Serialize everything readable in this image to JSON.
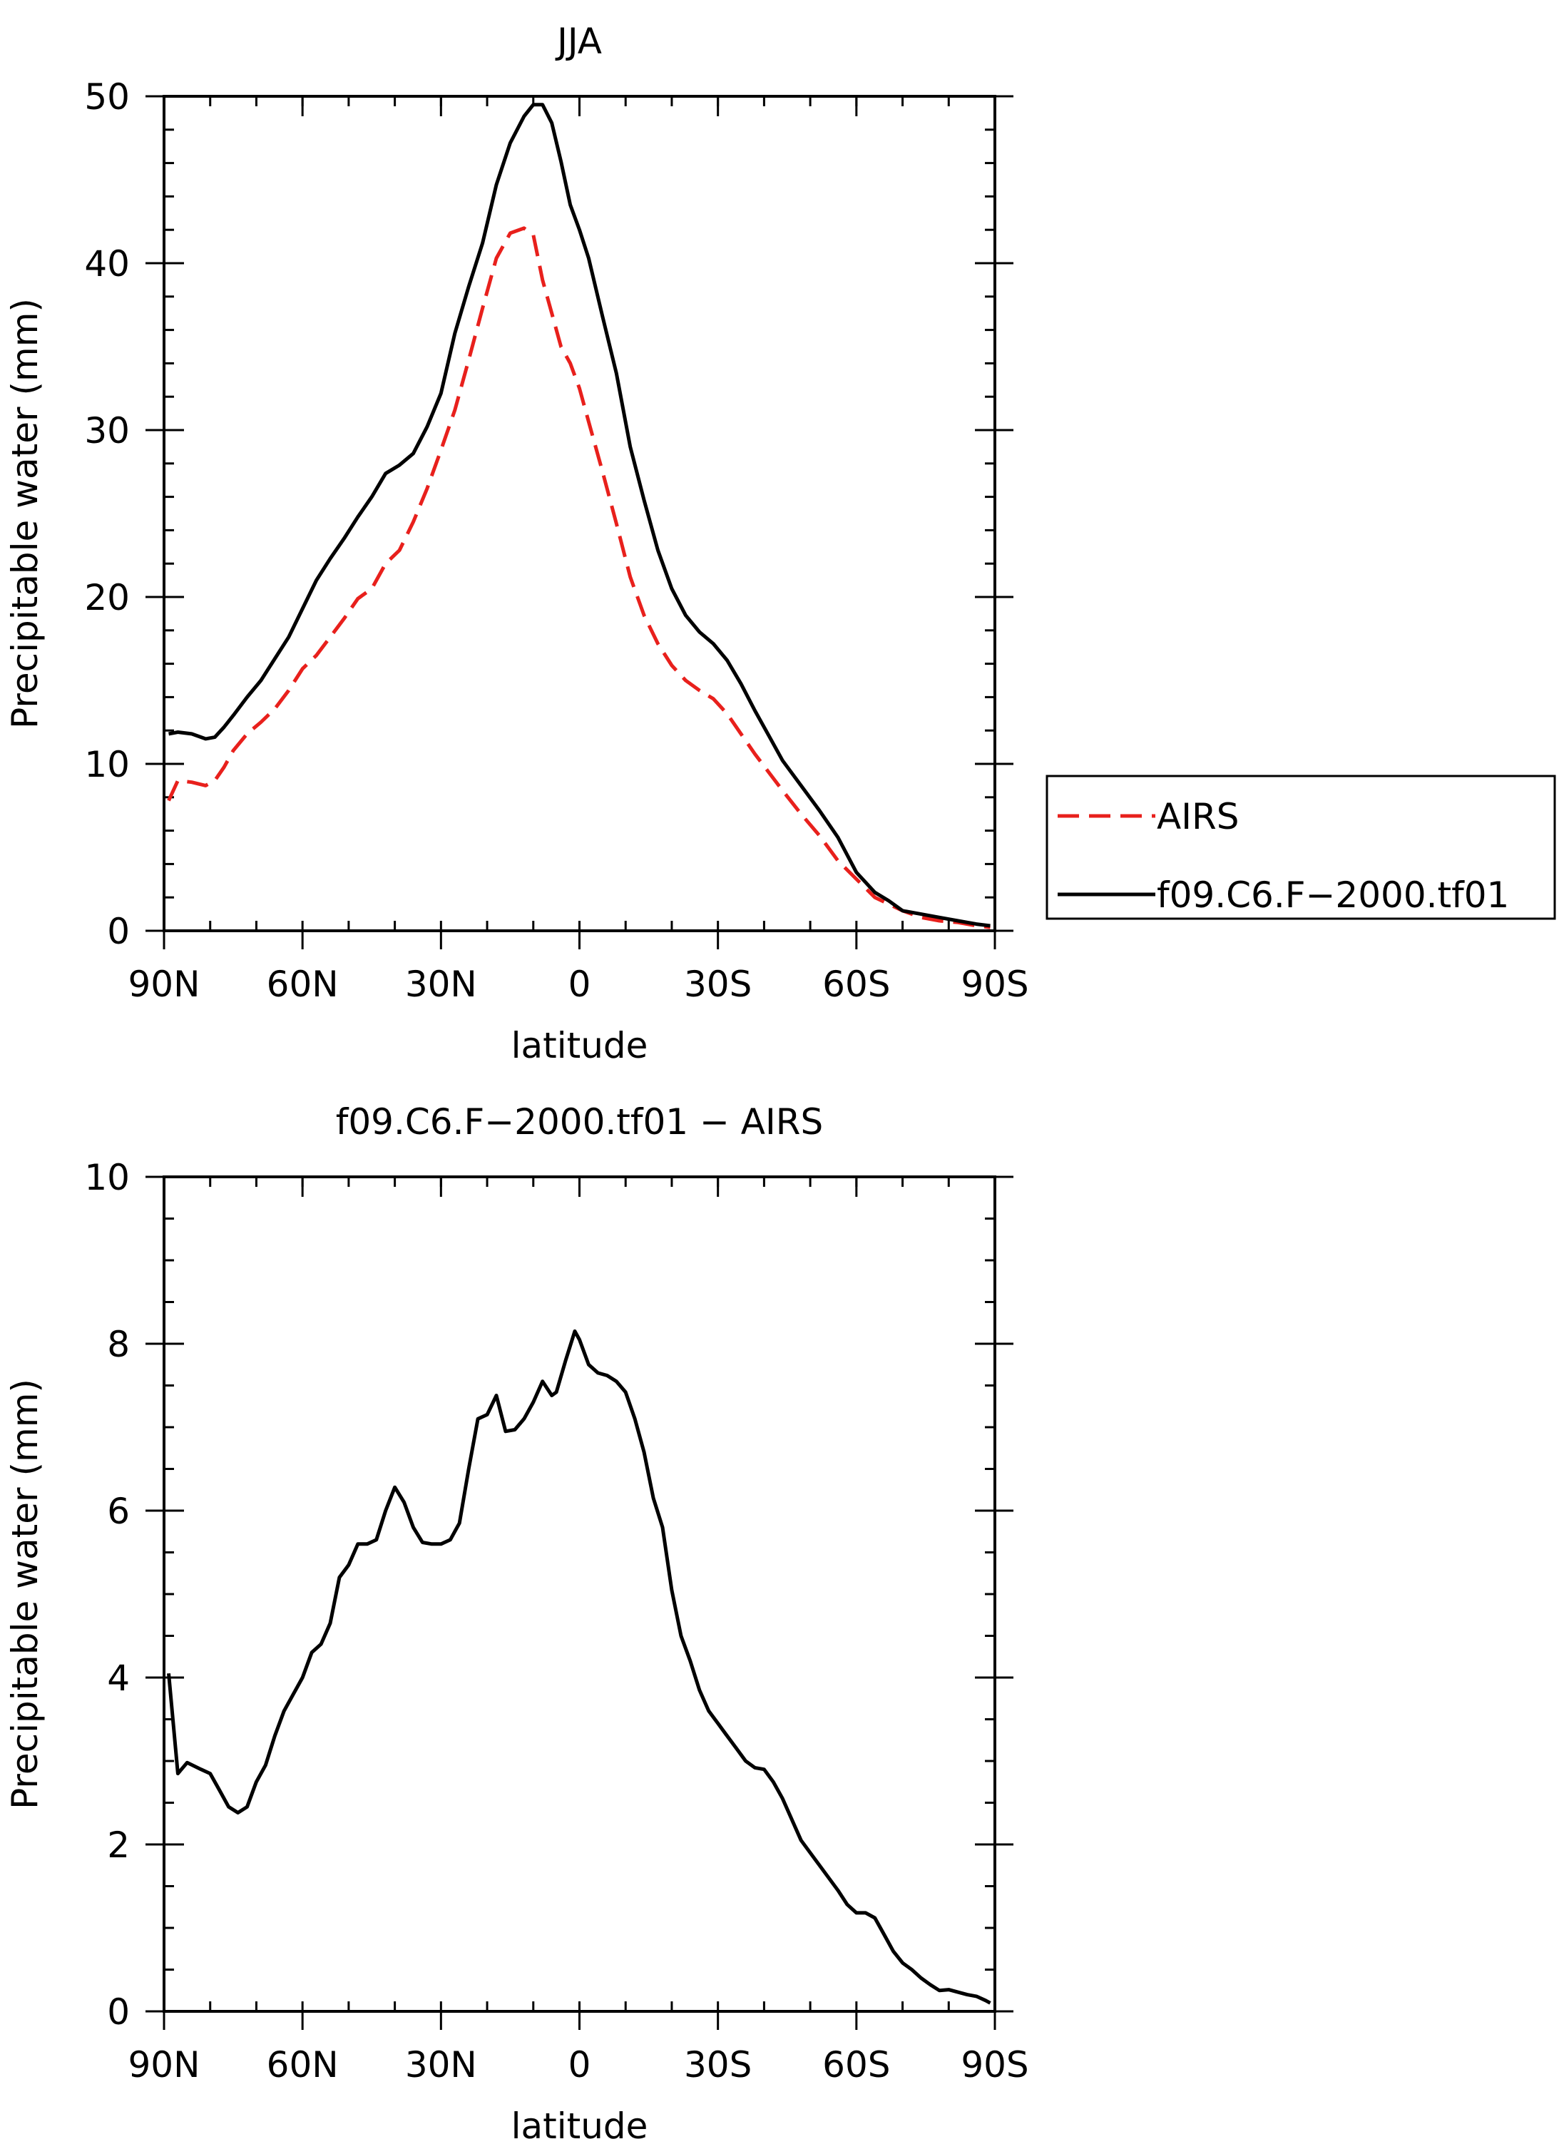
{
  "chart_data": [
    {
      "type": "line",
      "title": "JJA",
      "xlabel": "latitude",
      "ylabel": "Precipitable water (mm)",
      "xlim": [
        90,
        -90
      ],
      "ylim": [
        0,
        50
      ],
      "x_ticks": [
        {
          "value": 90,
          "label": "90N"
        },
        {
          "value": 60,
          "label": "60N"
        },
        {
          "value": 30,
          "label": "30N"
        },
        {
          "value": 0,
          "label": "0"
        },
        {
          "value": -30,
          "label": "30S"
        },
        {
          "value": -60,
          "label": "60S"
        },
        {
          "value": -90,
          "label": "90S"
        }
      ],
      "y_ticks": [
        0,
        10,
        20,
        30,
        40,
        50
      ],
      "legend_position": "outside-right",
      "series": [
        {
          "name": "AIRS",
          "color": "#e8201c",
          "dash": "dashed",
          "x": [
            89,
            87,
            84,
            81,
            79,
            77,
            75,
            72,
            69,
            66,
            63,
            60,
            57,
            54,
            51,
            48,
            45,
            42,
            39,
            36,
            33,
            30,
            27,
            24,
            21,
            18,
            15,
            12,
            10,
            8,
            6,
            4,
            2,
            0,
            -2,
            -5,
            -8,
            -11,
            -14,
            -17,
            -20,
            -23,
            -26,
            -29,
            -32,
            -35,
            -38,
            -41,
            -44,
            -48,
            -52,
            -56,
            -60,
            -64,
            -67,
            -70,
            -74,
            -78,
            -82,
            -86,
            -89
          ],
          "y": [
            7.8,
            9.0,
            8.9,
            8.7,
            9.0,
            9.8,
            10.8,
            11.8,
            12.5,
            13.3,
            14.4,
            15.7,
            16.5,
            17.6,
            18.7,
            19.9,
            20.5,
            22.0,
            22.8,
            24.5,
            26.5,
            28.8,
            31.2,
            34.2,
            37.3,
            40.3,
            41.8,
            42.1,
            41.7,
            39.0,
            37.0,
            35.0,
            34.0,
            32.5,
            30.5,
            27.5,
            24.4,
            21.2,
            18.9,
            17.2,
            15.9,
            15.0,
            14.4,
            13.9,
            13.0,
            11.8,
            10.6,
            9.5,
            8.4,
            7.0,
            5.7,
            4.2,
            3.1,
            2.0,
            1.6,
            1.2,
            0.8,
            0.6,
            0.5,
            0.3,
            0.2
          ]
        },
        {
          "name": "f09.C6.F−2000.tf01",
          "color": "#000000",
          "dash": "solid",
          "x": [
            89,
            87,
            84,
            81,
            79,
            77,
            75,
            72,
            69,
            66,
            63,
            60,
            57,
            54,
            51,
            48,
            45,
            42,
            39,
            36,
            33,
            30,
            27,
            24,
            21,
            18,
            15,
            12,
            10,
            8,
            6,
            4,
            2,
            0,
            -2,
            -5,
            -8,
            -11,
            -14,
            -17,
            -20,
            -23,
            -26,
            -29,
            -32,
            -35,
            -38,
            -41,
            -44,
            -48,
            -52,
            -56,
            -60,
            -64,
            -67,
            -70,
            -74,
            -78,
            -82,
            -86,
            -89
          ],
          "y": [
            11.8,
            11.9,
            11.8,
            11.5,
            11.6,
            12.2,
            12.9,
            14.0,
            15.0,
            16.3,
            17.6,
            19.3,
            21.0,
            22.3,
            23.5,
            24.8,
            26.0,
            27.4,
            27.9,
            28.6,
            30.2,
            32.2,
            35.8,
            38.6,
            41.2,
            44.7,
            47.2,
            48.8,
            49.5,
            49.5,
            48.4,
            46.1,
            43.5,
            42.0,
            40.3,
            36.8,
            33.4,
            29.0,
            25.8,
            22.8,
            20.5,
            18.9,
            17.9,
            17.2,
            16.2,
            14.8,
            13.2,
            11.7,
            10.2,
            8.7,
            7.2,
            5.6,
            3.5,
            2.3,
            1.8,
            1.2,
            1.0,
            0.8,
            0.6,
            0.4,
            0.3
          ]
        }
      ]
    },
    {
      "type": "line",
      "title": "f09.C6.F−2000.tf01 − AIRS",
      "xlabel": "latitude",
      "ylabel": "Precipitable water (mm)",
      "xlim": [
        90,
        -90
      ],
      "ylim": [
        0,
        10
      ],
      "x_ticks": [
        {
          "value": 90,
          "label": "90N"
        },
        {
          "value": 60,
          "label": "60N"
        },
        {
          "value": 30,
          "label": "30N"
        },
        {
          "value": 0,
          "label": "0"
        },
        {
          "value": -30,
          "label": "30S"
        },
        {
          "value": -60,
          "label": "60S"
        },
        {
          "value": -90,
          "label": "90S"
        }
      ],
      "y_ticks": [
        0,
        2,
        4,
        6,
        8,
        10
      ],
      "series": [
        {
          "color": "#000000",
          "dash": "solid",
          "x": [
            89,
            87,
            85,
            82,
            80,
            78,
            76,
            74,
            72,
            70,
            68,
            66,
            64,
            62,
            60,
            58,
            56,
            54,
            52,
            50,
            48,
            46,
            44,
            42,
            40,
            38,
            36,
            34,
            32,
            30,
            28,
            26,
            24,
            22,
            20,
            18,
            16,
            14,
            12,
            10,
            8,
            6,
            5,
            3,
            1,
            0,
            -2,
            -4,
            -6,
            -8,
            -10,
            -12,
            -14,
            -16,
            -18,
            -20,
            -22,
            -24,
            -26,
            -28,
            -30,
            -32,
            -34,
            -36,
            -38,
            -40,
            -42,
            -44,
            -46,
            -48,
            -50,
            -52,
            -54,
            -56,
            -58,
            -60,
            -62,
            -64,
            -66,
            -68,
            -70,
            -72,
            -74,
            -76,
            -78,
            -80,
            -82,
            -84,
            -86,
            -88,
            -89
          ],
          "y": [
            4.05,
            2.85,
            2.98,
            2.9,
            2.85,
            2.65,
            2.45,
            2.38,
            2.45,
            2.75,
            2.95,
            3.3,
            3.6,
            3.8,
            4.0,
            4.3,
            4.4,
            4.65,
            5.2,
            5.35,
            5.6,
            5.6,
            5.65,
            6.0,
            6.28,
            6.1,
            5.8,
            5.62,
            5.6,
            5.6,
            5.65,
            5.85,
            6.5,
            7.1,
            7.15,
            7.38,
            6.95,
            6.97,
            7.1,
            7.3,
            7.55,
            7.38,
            7.42,
            7.8,
            8.15,
            8.05,
            7.75,
            7.65,
            7.62,
            7.55,
            7.42,
            7.1,
            6.7,
            6.15,
            5.8,
            5.05,
            4.5,
            4.2,
            3.85,
            3.6,
            3.45,
            3.3,
            3.15,
            3.0,
            2.92,
            2.9,
            2.75,
            2.55,
            2.3,
            2.05,
            1.9,
            1.75,
            1.6,
            1.45,
            1.28,
            1.18,
            1.18,
            1.12,
            0.92,
            0.72,
            0.58,
            0.5,
            0.4,
            0.32,
            0.25,
            0.26,
            0.23,
            0.2,
            0.18,
            0.13,
            0.1
          ]
        }
      ]
    }
  ]
}
